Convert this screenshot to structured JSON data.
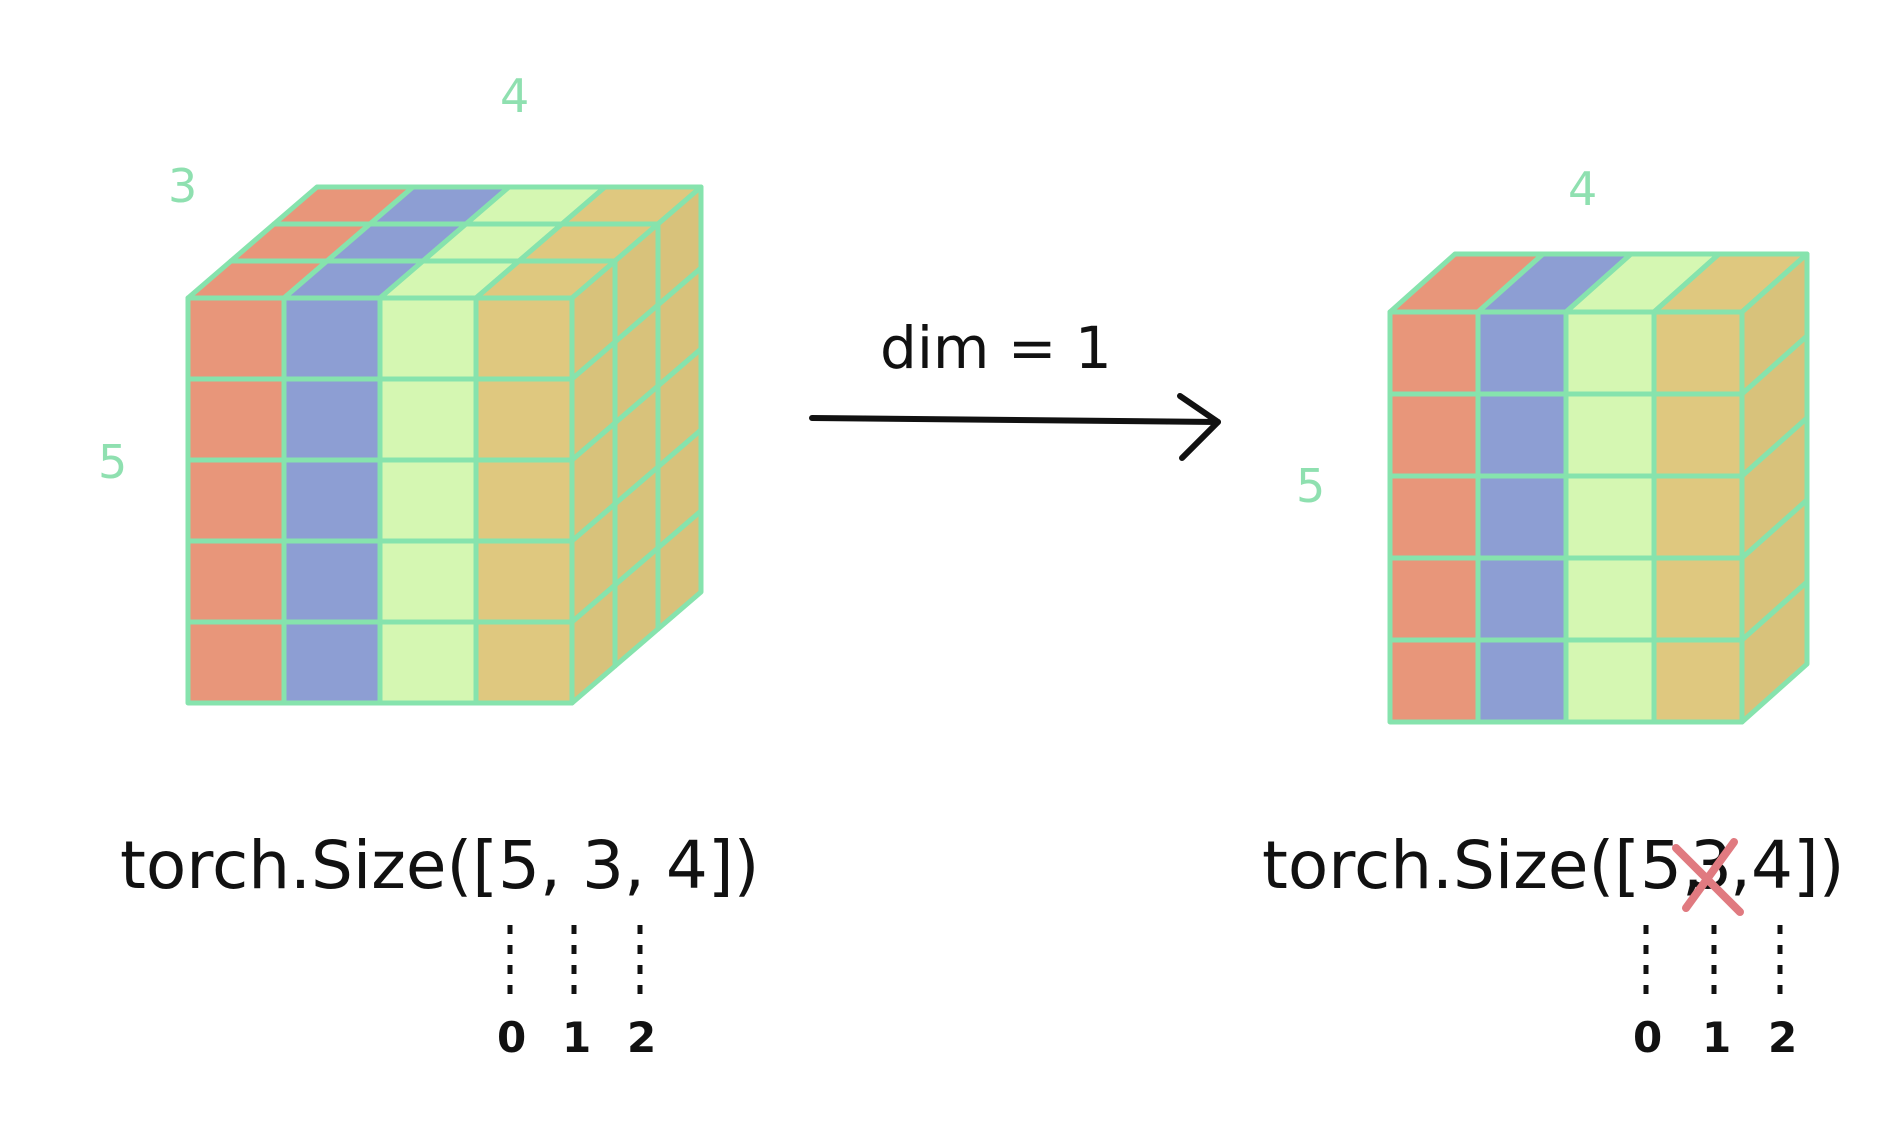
{
  "colors": {
    "grid": "#86e3ad",
    "col0": "#e8967a",
    "col1": "#8d9ed3",
    "col2": "#d5f7b2",
    "col3": "#dfc87f",
    "ink": "#111111",
    "strike": "#e07a80"
  },
  "left": {
    "label_rows": "5",
    "label_depth": "3",
    "label_cols": "4",
    "size_text": "torch.Size([5, 3, 4])",
    "dim_indices": [
      "0",
      "1",
      "2"
    ]
  },
  "right": {
    "label_rows": "5",
    "label_cols": "4",
    "size_prefix": "torch.Size([5,",
    "removed_dim": "3",
    "size_suffix": ",4])",
    "dim_indices": [
      "0",
      "1",
      "2"
    ]
  },
  "arrow": {
    "label": "dim = 1"
  }
}
